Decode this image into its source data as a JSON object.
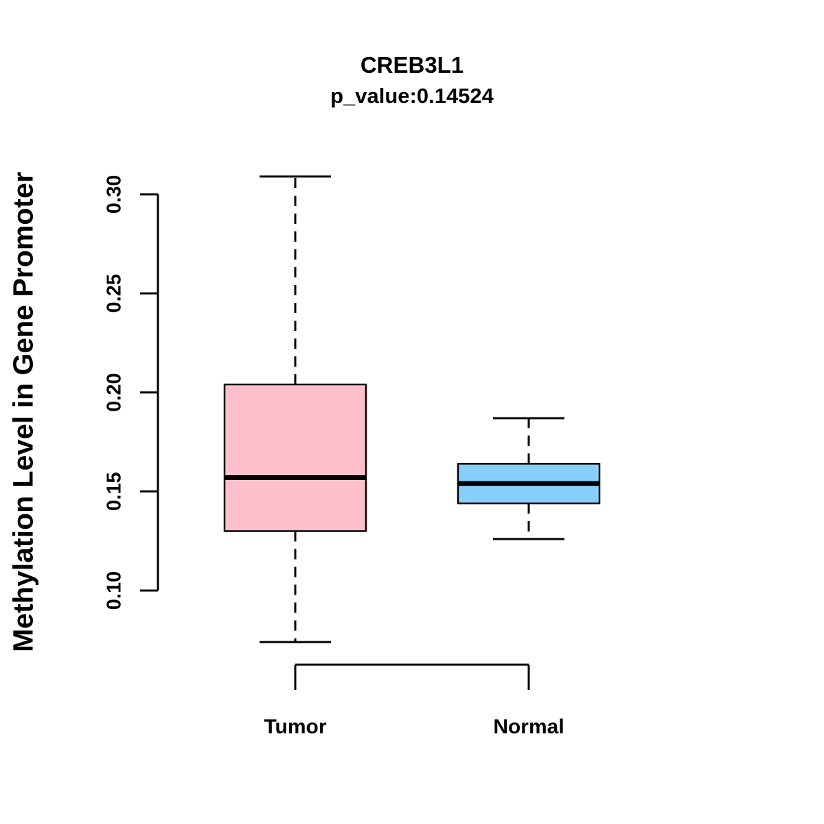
{
  "chart_data": {
    "type": "boxplot",
    "title": "CREB3L1",
    "subtitle": "p_value:0.14524",
    "ylabel": "Methylation Level in Gene Promoter",
    "xlabel": "",
    "yticks": [
      "0.10",
      "0.15",
      "0.20",
      "0.25",
      "0.30"
    ],
    "ylim": [
      0.07,
      0.31
    ],
    "grid": false,
    "legend": "none",
    "categories": [
      "Tumor",
      "Normal"
    ],
    "series": [
      {
        "name": "Tumor",
        "color": "#FFC0CB",
        "whisker_low": 0.074,
        "q1": 0.13,
        "median": 0.157,
        "q3": 0.204,
        "whisker_high": 0.309
      },
      {
        "name": "Normal",
        "color": "#87CEFA",
        "whisker_low": 0.126,
        "q1": 0.144,
        "median": 0.154,
        "q3": 0.164,
        "whisker_high": 0.187
      }
    ],
    "colors": {
      "box_stroke": "#000000",
      "median": "#000000",
      "axis": "#000000"
    }
  }
}
